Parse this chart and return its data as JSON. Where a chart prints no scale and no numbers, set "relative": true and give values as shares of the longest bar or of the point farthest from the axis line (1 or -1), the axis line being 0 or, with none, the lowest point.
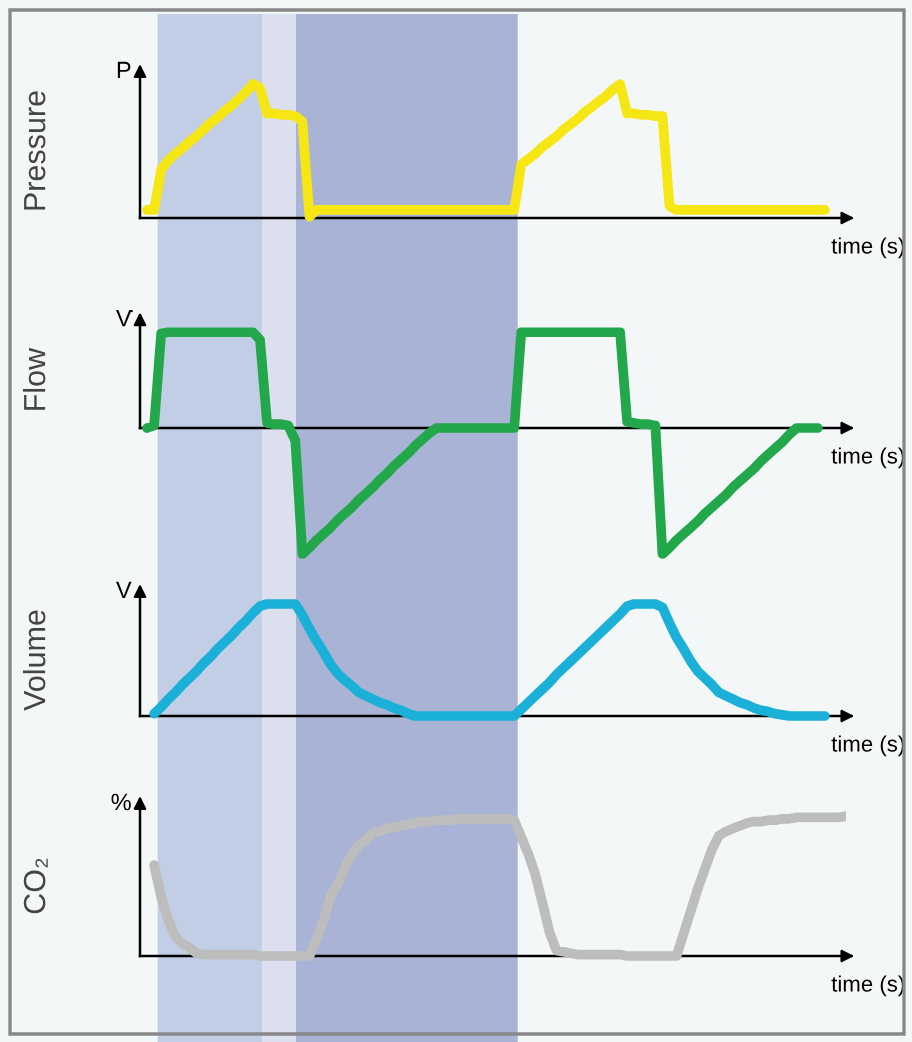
{
  "chart_data": [
    {
      "type": "line",
      "relative": true,
      "title": "Pressure",
      "ylabel": "P",
      "xlabel": "time (s)",
      "tick_labels": false,
      "categories": [
        null,
        null,
        null,
        null,
        null,
        null,
        null,
        null,
        null,
        null,
        null,
        null,
        null,
        null,
        null,
        null,
        null,
        null,
        null,
        null,
        null,
        null,
        null,
        null,
        null,
        null,
        null,
        null,
        null,
        null,
        null,
        null,
        null,
        null,
        null,
        null,
        null,
        null,
        null,
        null,
        null,
        null,
        null,
        null,
        null,
        null,
        null,
        null,
        null,
        null,
        null,
        null,
        null,
        null,
        null,
        null,
        null,
        null,
        null,
        null,
        null,
        null,
        null,
        null,
        null,
        null,
        null,
        null,
        null,
        null,
        null,
        null,
        null,
        null,
        null,
        null,
        null,
        null,
        null,
        null,
        null,
        null,
        null,
        null,
        null,
        null,
        null,
        null,
        null,
        null,
        null,
        null,
        null,
        null,
        null,
        null,
        null,
        null,
        null,
        null,
        null
      ],
      "series": [
        {
          "color": "#f5e614",
          "values": [
            null,
            0.06,
            0.06,
            0.36,
            0.43,
            0.48,
            0.52,
            0.57,
            0.61,
            0.66,
            0.71,
            0.75,
            0.8,
            0.84,
            0.89,
            0.94,
            1,
            0.97,
            0.78,
            0.78,
            0.77,
            0.77,
            0.76,
            0.72,
            0.01,
            0.06,
            0.06,
            0.06,
            0.06,
            0.06,
            0.06,
            0.06,
            0.06,
            0.06,
            0.06,
            0.06,
            0.06,
            0.06,
            0.06,
            0.06,
            0.06,
            0.06,
            0.06,
            0.06,
            0.06,
            0.06,
            0.06,
            0.06,
            0.06,
            0.06,
            0.06,
            0.06,
            0.06,
            0.06,
            0.4,
            0.44,
            0.48,
            0.53,
            0.57,
            0.61,
            0.66,
            0.7,
            0.74,
            0.79,
            0.83,
            0.87,
            0.91,
            0.96,
            1,
            0.78,
            0.78,
            0.77,
            0.77,
            0.76,
            0.76,
            0.09,
            0.06,
            0.06,
            0.06,
            0.06,
            0.06,
            0.06,
            0.06,
            0.06,
            0.06,
            0.06,
            0.06,
            0.06,
            0.06,
            0.06,
            0.06,
            0.06,
            0.06,
            0.06,
            0.06,
            0.06,
            0.06,
            0.06,
            null,
            null,
            null
          ]
        }
      ]
    },
    {
      "type": "line",
      "relative": true,
      "title": "Flow",
      "ylabel": "V̇",
      "xlabel": "time (s)",
      "tick_labels": false,
      "categories": [
        null,
        null,
        null,
        null,
        null,
        null,
        null,
        null,
        null,
        null,
        null,
        null,
        null,
        null,
        null,
        null,
        null,
        null,
        null,
        null,
        null,
        null,
        null,
        null,
        null,
        null,
        null,
        null,
        null,
        null,
        null,
        null,
        null,
        null,
        null,
        null,
        null,
        null,
        null,
        null,
        null,
        null,
        null,
        null,
        null,
        null,
        null,
        null,
        null,
        null,
        null,
        null,
        null,
        null,
        null,
        null,
        null,
        null,
        null,
        null,
        null,
        null,
        null,
        null,
        null,
        null,
        null,
        null,
        null,
        null,
        null,
        null,
        null,
        null,
        null,
        null,
        null,
        null,
        null,
        null,
        null,
        null,
        null,
        null,
        null,
        null,
        null,
        null,
        null,
        null,
        null,
        null,
        null,
        null,
        null,
        null,
        null,
        null,
        null,
        null,
        null
      ],
      "series": [
        {
          "color": "#22a84a",
          "values": [
            null,
            0,
            0.02,
            0.75,
            0.76,
            0.76,
            0.76,
            0.76,
            0.76,
            0.76,
            0.76,
            0.76,
            0.76,
            0.76,
            0.76,
            0.76,
            0.76,
            0.7,
            0.04,
            0.03,
            0.03,
            0.02,
            -0.1,
            -1,
            -0.95,
            -0.89,
            -0.84,
            -0.79,
            -0.73,
            -0.68,
            -0.63,
            -0.57,
            -0.52,
            -0.47,
            -0.41,
            -0.36,
            -0.3,
            -0.25,
            -0.2,
            -0.14,
            -0.09,
            -0.04,
            0,
            0,
            0,
            0,
            0,
            0,
            0,
            0,
            0,
            0,
            0,
            0,
            0.76,
            0.76,
            0.76,
            0.76,
            0.76,
            0.76,
            0.76,
            0.76,
            0.76,
            0.76,
            0.76,
            0.76,
            0.76,
            0.76,
            0.76,
            0.05,
            0.04,
            0.03,
            0.03,
            0.02,
            -1,
            -0.95,
            -0.89,
            -0.84,
            -0.79,
            -0.74,
            -0.68,
            -0.63,
            -0.58,
            -0.53,
            -0.47,
            -0.42,
            -0.37,
            -0.32,
            -0.26,
            -0.21,
            -0.16,
            -0.11,
            -0.05,
            0,
            0,
            0,
            0,
            null,
            null,
            null,
            null
          ]
        }
      ]
    },
    {
      "type": "line",
      "relative": true,
      "title": "Volume",
      "ylabel": "V",
      "xlabel": "time (s)",
      "tick_labels": false,
      "categories": [
        null,
        null,
        null,
        null,
        null,
        null,
        null,
        null,
        null,
        null,
        null,
        null,
        null,
        null,
        null,
        null,
        null,
        null,
        null,
        null,
        null,
        null,
        null,
        null,
        null,
        null,
        null,
        null,
        null,
        null,
        null,
        null,
        null,
        null,
        null,
        null,
        null,
        null,
        null,
        null,
        null,
        null,
        null,
        null,
        null,
        null,
        null,
        null,
        null,
        null,
        null,
        null,
        null,
        null,
        null,
        null,
        null,
        null,
        null,
        null,
        null,
        null,
        null,
        null,
        null,
        null,
        null,
        null,
        null,
        null,
        null,
        null,
        null,
        null,
        null,
        null,
        null,
        null,
        null,
        null,
        null,
        null,
        null,
        null,
        null,
        null,
        null,
        null,
        null,
        null,
        null,
        null,
        null,
        null,
        null,
        null,
        null,
        null,
        null,
        null,
        null
      ],
      "series": [
        {
          "color": "#1ab0d8",
          "values": [
            null,
            null,
            0.02,
            0.08,
            0.15,
            0.21,
            0.28,
            0.34,
            0.4,
            0.47,
            0.53,
            0.6,
            0.66,
            0.72,
            0.79,
            0.85,
            0.92,
            0.98,
            1,
            1,
            1,
            1,
            1,
            0.9,
            0.78,
            0.67,
            0.57,
            0.46,
            0.38,
            0.32,
            0.27,
            0.21,
            0.18,
            0.15,
            0.12,
            0.1,
            0.07,
            0.05,
            0.02,
            0,
            0,
            0,
            0,
            0,
            0,
            0,
            0,
            0,
            0,
            0,
            0,
            0,
            0,
            0,
            0.06,
            0.12,
            0.18,
            0.24,
            0.3,
            0.37,
            0.43,
            0.49,
            0.55,
            0.61,
            0.67,
            0.73,
            0.79,
            0.85,
            0.91,
            0.98,
            1,
            1,
            1,
            1,
            0.97,
            0.83,
            0.7,
            0.6,
            0.49,
            0.4,
            0.34,
            0.28,
            0.21,
            0.18,
            0.15,
            0.12,
            0.1,
            0.07,
            0.05,
            0.04,
            0.02,
            0.01,
            0,
            0,
            0,
            0,
            0,
            0,
            null,
            null,
            null
          ]
        }
      ]
    },
    {
      "type": "line",
      "relative": true,
      "title": "CO₂",
      "ylabel": "%",
      "xlabel": "time (s)",
      "tick_labels": false,
      "categories": [
        null,
        null,
        null,
        null,
        null,
        null,
        null,
        null,
        null,
        null,
        null,
        null,
        null,
        null,
        null,
        null,
        null,
        null,
        null,
        null,
        null,
        null,
        null,
        null,
        null,
        null,
        null,
        null,
        null,
        null,
        null,
        null,
        null,
        null,
        null,
        null,
        null,
        null,
        null,
        null,
        null,
        null,
        null,
        null,
        null,
        null,
        null,
        null,
        null,
        null,
        null,
        null,
        null,
        null,
        null,
        null,
        null,
        null,
        null,
        null,
        null,
        null,
        null,
        null,
        null,
        null,
        null,
        null,
        null,
        null,
        null,
        null,
        null,
        null,
        null,
        null,
        null,
        null,
        null,
        null,
        null,
        null,
        null,
        null,
        null,
        null,
        null,
        null,
        null,
        null,
        null,
        null,
        null,
        null,
        null,
        null,
        null,
        null,
        null,
        null,
        null
      ],
      "series": [
        {
          "color": "#bdbdbd",
          "values": [
            null,
            null,
            0.65,
            0.42,
            0.26,
            0.14,
            0.09,
            0.06,
            0.02,
            0.01,
            0.01,
            0.01,
            0.01,
            0.01,
            0.01,
            0.01,
            0.01,
            0,
            0,
            0,
            0,
            0,
            0,
            0,
            0,
            0.12,
            0.25,
            0.43,
            0.51,
            0.63,
            0.73,
            0.79,
            0.83,
            0.88,
            0.89,
            0.91,
            0.92,
            0.93,
            0.94,
            0.95,
            0.96,
            0.96,
            0.97,
            0.97,
            0.97,
            0.98,
            0.98,
            0.98,
            0.98,
            0.98,
            0.98,
            0.98,
            0.98,
            0.97,
            0.85,
            0.73,
            0.58,
            0.38,
            0.17,
            0.04,
            0.03,
            0.02,
            0.01,
            0.01,
            0.01,
            0.01,
            0.01,
            0.01,
            0.01,
            0,
            0,
            0,
            0,
            0,
            0,
            0,
            0,
            0.16,
            0.32,
            0.48,
            0.62,
            0.76,
            0.86,
            0.89,
            0.91,
            0.93,
            0.95,
            0.96,
            0.96,
            0.97,
            0.97,
            0.98,
            0.98,
            0.99,
            0.99,
            0.99,
            0.99,
            0.99,
            0.99,
            0.99,
            1
          ]
        }
      ]
    }
  ]
}
